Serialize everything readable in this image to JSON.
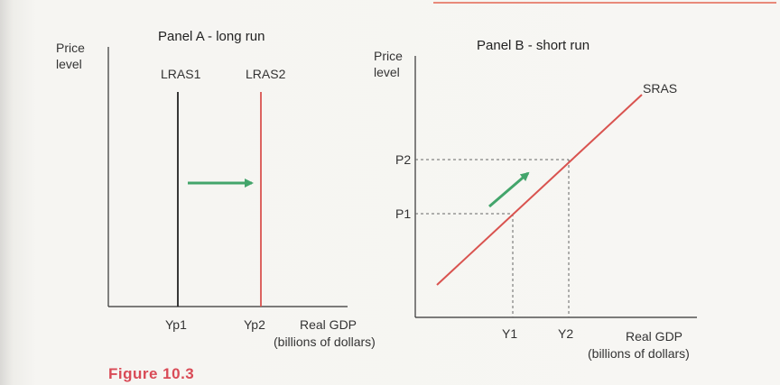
{
  "caption": "Figure 10.3",
  "colors": {
    "axis": "#333333",
    "lras1": "#222222",
    "curve": "#d9534f",
    "arrow": "#43a56b",
    "dash": "#666666",
    "caption": "#d94a56"
  },
  "chart_data": [
    {
      "type": "line",
      "title": "Panel A - long run",
      "ylabel": "Price\nlevel",
      "xlabel": "Real GDP\n(billions of dollars)",
      "x_ticks": [
        "Yp1",
        "Yp2"
      ],
      "series": [
        {
          "name": "LRAS1",
          "x": [
            "Yp1",
            "Yp1"
          ],
          "y": [
            0,
            1
          ]
        },
        {
          "name": "LRAS2",
          "x": [
            "Yp2",
            "Yp2"
          ],
          "y": [
            0,
            1
          ]
        }
      ],
      "annotations": [
        {
          "type": "arrow",
          "from": "LRAS1",
          "to": "LRAS2",
          "direction": "right"
        }
      ]
    },
    {
      "type": "line",
      "title": "Panel B - short run",
      "ylabel": "Price\nlevel",
      "xlabel": "Real GDP\n(billions of dollars)",
      "x_ticks": [
        "Y1",
        "Y2"
      ],
      "y_ticks": [
        "P1",
        "P2"
      ],
      "series": [
        {
          "name": "SRAS",
          "points": [
            {
              "x": "Y1",
              "y": "P1"
            },
            {
              "x": "Y2",
              "y": "P2"
            }
          ]
        }
      ],
      "annotations": [
        {
          "type": "dashed-guide",
          "x": "Y1",
          "y": "P1"
        },
        {
          "type": "dashed-guide",
          "x": "Y2",
          "y": "P2"
        },
        {
          "type": "arrow",
          "direction": "up-right",
          "along": "SRAS"
        }
      ]
    }
  ]
}
